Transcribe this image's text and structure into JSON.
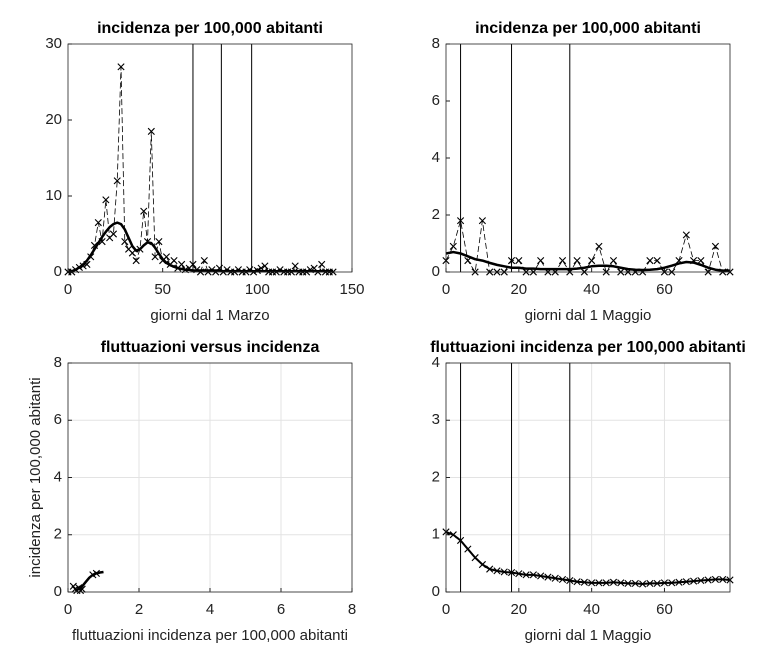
{
  "chart_data": [
    {
      "type": "line",
      "title": "incidenza per 100,000 abitanti",
      "xlabel": "giorni dal 1 Marzo",
      "x": [
        0,
        2,
        4,
        6,
        8,
        10,
        12,
        14,
        16,
        18,
        20,
        22,
        24,
        26,
        28,
        30,
        32,
        34,
        36,
        38,
        40,
        42,
        44,
        46,
        48,
        50,
        52,
        54,
        56,
        58,
        60,
        62,
        64,
        66,
        68,
        70,
        72,
        74,
        76,
        78,
        80,
        82,
        84,
        86,
        88,
        90,
        92,
        94,
        96,
        98,
        100,
        102,
        104,
        106,
        108,
        110,
        112,
        114,
        116,
        118,
        120,
        122,
        124,
        126,
        128,
        130,
        132,
        134,
        136,
        138,
        140
      ],
      "series": [
        {
          "color": "#000000",
          "line_style": "dashed",
          "marker": "x",
          "line_width": 0.8,
          "values": [
            0,
            0,
            0.3,
            0.6,
            0.8,
            1,
            2,
            3.5,
            6.5,
            4,
            9.5,
            4.5,
            5,
            12,
            27,
            4,
            3,
            2.5,
            1.5,
            3,
            8,
            4,
            18.5,
            2,
            4,
            1.5,
            2,
            1,
            1.5,
            0.5,
            1,
            0.3,
            0.5,
            1,
            0.3,
            0,
            1.5,
            0,
            0.3,
            0,
            0.5,
            0,
            0.3,
            0,
            0,
            0.3,
            0,
            0,
            0.3,
            0,
            0.2,
            0.5,
            0.8,
            0,
            0,
            0,
            0.3,
            0,
            0,
            0,
            0.8,
            0,
            0,
            0,
            0.3,
            0.5,
            0,
            1,
            0,
            0,
            0
          ]
        },
        {
          "color": "#000000",
          "line_style": "solid",
          "line_width": 2.5,
          "values": [
            0,
            0.1,
            0.3,
            0.6,
            1,
            1.5,
            2.2,
            3,
            3.8,
            4.6,
            5.3,
            5.9,
            6.3,
            6.5,
            6.3,
            5.6,
            4.5,
            3.4,
            2.8,
            3,
            3.5,
            3.9,
            3.8,
            3.2,
            2.4,
            1.7,
            1.2,
            0.9,
            0.7,
            0.5,
            0.4,
            0.3,
            0.3,
            0.2,
            0.2,
            0.2,
            0.2,
            0.2,
            0.2,
            0.2,
            0.2,
            0.1,
            0.1,
            0.1,
            0.1,
            0.1,
            0.1,
            0.1,
            0.1,
            0.1,
            0.1,
            0.1,
            0.1,
            0.1,
            0.1,
            0.1,
            0.1,
            0.1,
            0.1,
            0.1,
            0.1,
            0.1,
            0.1,
            0.1,
            0.1,
            0.1,
            0.1,
            0.1,
            0.1,
            0.1,
            0.1
          ]
        }
      ],
      "vlines": [
        66,
        81,
        97
      ],
      "xlim": [
        0,
        150
      ],
      "xticks": [
        0,
        50,
        100,
        150
      ],
      "ylim": [
        0,
        30
      ],
      "yticks": [
        0,
        10,
        20,
        30
      ],
      "grid": false
    },
    {
      "type": "line",
      "title": "incidenza per 100,000 abitanti",
      "xlabel": "giorni dal 1 Maggio",
      "x": [
        0,
        2,
        4,
        6,
        8,
        10,
        12,
        14,
        16,
        18,
        20,
        22,
        24,
        26,
        28,
        30,
        32,
        34,
        36,
        38,
        40,
        42,
        44,
        46,
        48,
        50,
        52,
        54,
        56,
        58,
        60,
        62,
        64,
        66,
        68,
        70,
        72,
        74,
        76,
        78
      ],
      "series": [
        {
          "color": "#000000",
          "line_style": "dashed",
          "marker": "x",
          "line_width": 0.8,
          "values": [
            0.4,
            0.9,
            1.8,
            0.4,
            0,
            1.8,
            0,
            0,
            0,
            0.4,
            0.4,
            0,
            0,
            0.4,
            0,
            0,
            0.4,
            0,
            0.4,
            0,
            0.4,
            0.9,
            0,
            0.4,
            0,
            0,
            0,
            0,
            0.4,
            0.4,
            0,
            0,
            0.4,
            1.3,
            0.4,
            0.4,
            0,
            0.9,
            0,
            0
          ]
        },
        {
          "color": "#000000",
          "line_style": "solid",
          "line_width": 2.5,
          "values": [
            0.65,
            0.7,
            0.65,
            0.55,
            0.45,
            0.4,
            0.32,
            0.25,
            0.2,
            0.15,
            0.15,
            0.12,
            0.12,
            0.1,
            0.1,
            0.1,
            0.1,
            0.1,
            0.12,
            0.15,
            0.2,
            0.22,
            0.22,
            0.2,
            0.15,
            0.1,
            0.08,
            0.07,
            0.08,
            0.1,
            0.15,
            0.22,
            0.3,
            0.35,
            0.33,
            0.25,
            0.15,
            0.08,
            0.05,
            0.05
          ]
        }
      ],
      "vlines": [
        4,
        18,
        34
      ],
      "xlim": [
        0,
        78
      ],
      "xticks": [
        0,
        20,
        40,
        60
      ],
      "ylim": [
        0,
        8
      ],
      "yticks": [
        0,
        2,
        4,
        6,
        8
      ],
      "grid": false
    },
    {
      "type": "line",
      "title": "fluttuazioni versus incidenza",
      "xlabel": "fluttuazioni incidenza per 100,000 abitanti",
      "ylabel": "incidenza per 100,000 abitanti",
      "series": [
        {
          "color": "#000000",
          "line_style": "none",
          "marker": "x",
          "line_width": 0.8,
          "x": [
            0.2,
            0.3,
            0.25,
            0.4,
            0.15,
            0.35,
            0.8,
            0.7
          ],
          "values": [
            0.1,
            0.15,
            0.05,
            0.1,
            0.2,
            0.05,
            0.65,
            0.6
          ]
        },
        {
          "color": "#000000",
          "line_style": "solid",
          "line_width": 2.5,
          "x": [
            0.2,
            0.3,
            0.4,
            0.5,
            0.6,
            0.7,
            0.8,
            0.9,
            1.0
          ],
          "values": [
            0.05,
            0.1,
            0.2,
            0.35,
            0.5,
            0.6,
            0.65,
            0.68,
            0.7
          ]
        }
      ],
      "xlim": [
        0,
        8
      ],
      "xticks": [
        0,
        2,
        4,
        6,
        8
      ],
      "ylim": [
        0,
        8
      ],
      "yticks": [
        0,
        2,
        4,
        6,
        8
      ],
      "grid": true
    },
    {
      "type": "line",
      "title": "fluttuazioni incidenza per 100,000 abitanti",
      "xlabel": "giorni dal 1 Maggio",
      "x": [
        0,
        2,
        4,
        6,
        8,
        10,
        12,
        14,
        16,
        18,
        20,
        22,
        24,
        26,
        28,
        30,
        32,
        34,
        36,
        38,
        40,
        42,
        44,
        46,
        48,
        50,
        52,
        54,
        56,
        58,
        60,
        62,
        64,
        66,
        68,
        70,
        72,
        74,
        76,
        78
      ],
      "series": [
        {
          "color": "#000000",
          "line_style": "solid",
          "marker": "x",
          "line_width": 2,
          "values": [
            1.05,
            1.0,
            0.9,
            0.75,
            0.6,
            0.48,
            0.4,
            0.37,
            0.35,
            0.34,
            0.32,
            0.3,
            0.3,
            0.28,
            0.26,
            0.24,
            0.22,
            0.2,
            0.18,
            0.17,
            0.16,
            0.16,
            0.16,
            0.17,
            0.16,
            0.15,
            0.15,
            0.14,
            0.15,
            0.15,
            0.16,
            0.16,
            0.17,
            0.18,
            0.19,
            0.2,
            0.21,
            0.22,
            0.22,
            0.21
          ]
        }
      ],
      "vlines": [
        4,
        18,
        34
      ],
      "xlim": [
        0,
        78
      ],
      "xticks": [
        0,
        20,
        40,
        60
      ],
      "ylim": [
        0,
        4
      ],
      "yticks": [
        0,
        1,
        2,
        3,
        4
      ],
      "grid": true
    }
  ]
}
